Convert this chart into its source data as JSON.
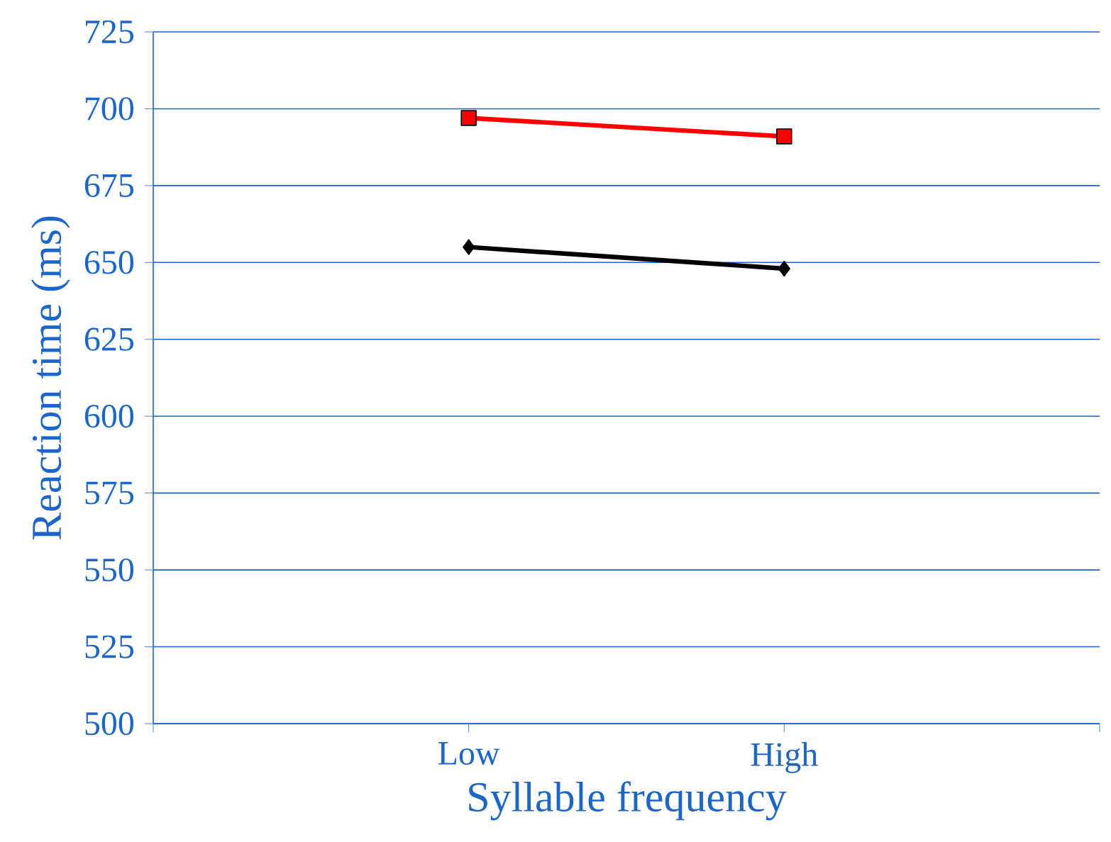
{
  "chart_data": {
    "type": "line",
    "xlabel": "Syllable frequency",
    "ylabel": "Reaction time (ms)",
    "categories": [
      null,
      "Low",
      "High",
      null
    ],
    "series": [
      {
        "color": "#ff0000",
        "marker": "square",
        "values": [
          null,
          697,
          691,
          null
        ]
      },
      {
        "color": "#000000",
        "marker": "diamond",
        "values": [
          null,
          655,
          648,
          null
        ]
      }
    ],
    "ylim": [
      500,
      725
    ],
    "yticks": [
      500,
      525,
      550,
      575,
      600,
      625,
      650,
      675,
      700,
      725
    ],
    "grid": "y"
  }
}
